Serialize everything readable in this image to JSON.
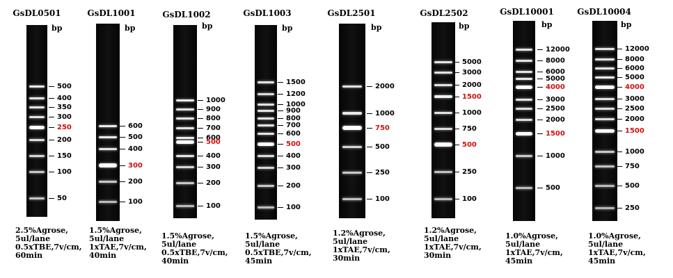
{
  "bp_unit": "bp",
  "colors": {
    "highlight": "#d01010",
    "gel": "#0a0a0a",
    "band": "#d8d8d8"
  },
  "lanes": [
    {
      "title": "GsDL0501",
      "markers": [
        {
          "label": "500",
          "red": false
        },
        {
          "label": "400",
          "red": false
        },
        {
          "label": "350",
          "red": false
        },
        {
          "label": "300",
          "red": false
        },
        {
          "label": "250",
          "red": true
        },
        {
          "label": "200",
          "red": false
        },
        {
          "label": "150",
          "red": false
        },
        {
          "label": "100",
          "red": false
        },
        {
          "label": "50",
          "red": false
        }
      ],
      "conditions": [
        "2.5%Agrose,",
        "5ul/lane",
        "0.5xTBE,7v/cm,",
        "60min"
      ]
    },
    {
      "title": "GsDL1001",
      "markers": [
        {
          "label": "600",
          "red": false
        },
        {
          "label": "500",
          "red": false
        },
        {
          "label": "400",
          "red": false
        },
        {
          "label": "300",
          "red": true
        },
        {
          "label": "200",
          "red": false
        },
        {
          "label": "100",
          "red": false
        }
      ],
      "conditions": [
        "1.5%Agrose,",
        "5ul/lane",
        "1xTAE,7v/cm,",
        "40min"
      ]
    },
    {
      "title": "GsDL1002",
      "markers": [
        {
          "label": "1000",
          "red": false
        },
        {
          "label": "900",
          "red": false
        },
        {
          "label": "800",
          "red": false
        },
        {
          "label": "700",
          "red": false
        },
        {
          "label": "600",
          "red": false
        },
        {
          "label": "500",
          "red": true
        },
        {
          "label": "400",
          "red": false
        },
        {
          "label": "300",
          "red": false
        },
        {
          "label": "200",
          "red": false
        },
        {
          "label": "100",
          "red": false
        }
      ],
      "conditions": [
        "1.5%Agrose,",
        "5ul/lane",
        "0.5xTBE,7v/cm,",
        "40min"
      ]
    },
    {
      "title": "GsDL1003",
      "markers": [
        {
          "label": "1500",
          "red": false
        },
        {
          "label": "1200",
          "red": false
        },
        {
          "label": "1000",
          "red": false
        },
        {
          "label": "900",
          "red": false
        },
        {
          "label": "800",
          "red": false
        },
        {
          "label": "700",
          "red": false
        },
        {
          "label": "600",
          "red": false
        },
        {
          "label": "500",
          "red": true
        },
        {
          "label": "400",
          "red": false
        },
        {
          "label": "300",
          "red": false
        },
        {
          "label": "200",
          "red": false
        },
        {
          "label": "100",
          "red": false
        }
      ],
      "conditions": [
        "1.5%Agrose,",
        "5ul/lane",
        "0.5xTBE,7v/cm,",
        "45min"
      ]
    },
    {
      "title": "GsDL2501",
      "markers": [
        {
          "label": "2000",
          "red": false
        },
        {
          "label": "1000",
          "red": false
        },
        {
          "label": "750",
          "red": true
        },
        {
          "label": "500",
          "red": false
        },
        {
          "label": "250",
          "red": false
        },
        {
          "label": "100",
          "red": false
        }
      ],
      "conditions": [
        "1.2%Agrose,",
        "5ul/lane",
        "1xTAE,7v/cm,",
        "30min"
      ]
    },
    {
      "title": "GsDL2502",
      "markers": [
        {
          "label": "5000",
          "red": false
        },
        {
          "label": "3000",
          "red": false
        },
        {
          "label": "2000",
          "red": false
        },
        {
          "label": "1500",
          "red": true
        },
        {
          "label": "1000",
          "red": false
        },
        {
          "label": "750",
          "red": false
        },
        {
          "label": "500",
          "red": true
        },
        {
          "label": "250",
          "red": false
        },
        {
          "label": "100",
          "red": false
        }
      ],
      "conditions": [
        "1.2%Agrose,",
        "5ul/lane",
        "1xTAE,7v/cm,",
        "30min"
      ]
    },
    {
      "title": "GsDL10001",
      "markers": [
        {
          "label": "12000",
          "red": false
        },
        {
          "label": "8000",
          "red": false
        },
        {
          "label": "6000",
          "red": false
        },
        {
          "label": "5000",
          "red": false
        },
        {
          "label": "4000",
          "red": true
        },
        {
          "label": "3000",
          "red": false
        },
        {
          "label": "2500",
          "red": false
        },
        {
          "label": "2000",
          "red": false
        },
        {
          "label": "1500",
          "red": true
        },
        {
          "label": "1000",
          "red": false
        },
        {
          "label": "500",
          "red": false
        }
      ],
      "conditions": [
        "1.0%Agrose,",
        "5ul/lane",
        "1xTAE,7v/cm,",
        "45min"
      ]
    },
    {
      "title": "GsDL10004",
      "markers": [
        {
          "label": "12000",
          "red": false
        },
        {
          "label": "8000",
          "red": false
        },
        {
          "label": "6000",
          "red": false
        },
        {
          "label": "5000",
          "red": false
        },
        {
          "label": "4000",
          "red": true
        },
        {
          "label": "3000",
          "red": false
        },
        {
          "label": "2500",
          "red": false
        },
        {
          "label": "2000",
          "red": false
        },
        {
          "label": "1500",
          "red": true
        },
        {
          "label": "1000",
          "red": false
        },
        {
          "label": "750",
          "red": false
        },
        {
          "label": "500",
          "red": false
        },
        {
          "label": "250",
          "red": false
        }
      ],
      "conditions": [
        "1.0%Agrose,",
        "5ul/lane",
        "1xTAE,7v/cm,",
        "45min"
      ]
    }
  ]
}
